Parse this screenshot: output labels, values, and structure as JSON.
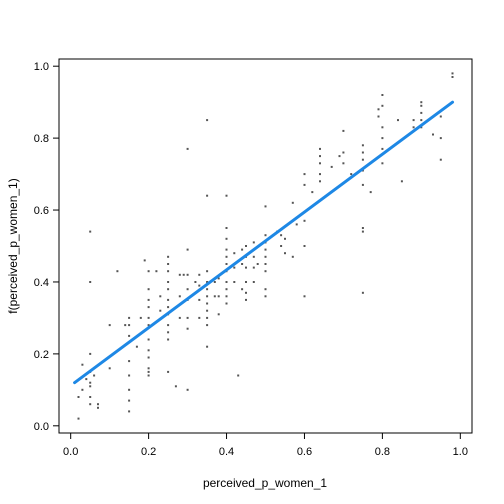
{
  "chart_data": {
    "type": "scatter",
    "xlabel": "perceived_p_women_1",
    "ylabel": "f(perceived_p_women_1)",
    "xlim": [
      -0.03,
      1.03
    ],
    "ylim": [
      -0.02,
      1.02
    ],
    "x_ticks": [
      0.0,
      0.2,
      0.4,
      0.6,
      0.8,
      1.0
    ],
    "x_tick_labels": [
      "0.0",
      "0.2",
      "0.4",
      "0.6",
      "0.8",
      "1.0"
    ],
    "y_ticks": [
      0.0,
      0.2,
      0.4,
      0.6,
      0.8,
      1.0
    ],
    "y_tick_labels": [
      "0.0",
      "0.2",
      "0.4",
      "0.6",
      "0.8",
      "1.0"
    ],
    "grid": false,
    "colors": {
      "points": "#555555",
      "fit_line": "#1e88e5"
    },
    "series": [
      {
        "kind": "points",
        "points": [
          [
            0.02,
            0.08
          ],
          [
            0.02,
            0.02
          ],
          [
            0.03,
            0.1
          ],
          [
            0.03,
            0.17
          ],
          [
            0.04,
            0.13
          ],
          [
            0.05,
            0.54
          ],
          [
            0.05,
            0.4
          ],
          [
            0.05,
            0.2
          ],
          [
            0.05,
            0.15
          ],
          [
            0.05,
            0.12
          ],
          [
            0.05,
            0.11
          ],
          [
            0.05,
            0.08
          ],
          [
            0.05,
            0.06
          ],
          [
            0.06,
            0.14
          ],
          [
            0.07,
            0.05
          ],
          [
            0.07,
            0.06
          ],
          [
            0.1,
            0.28
          ],
          [
            0.1,
            0.16
          ],
          [
            0.12,
            0.43
          ],
          [
            0.14,
            0.28
          ],
          [
            0.15,
            0.3
          ],
          [
            0.15,
            0.28
          ],
          [
            0.15,
            0.25
          ],
          [
            0.15,
            0.18
          ],
          [
            0.15,
            0.14
          ],
          [
            0.15,
            0.1
          ],
          [
            0.15,
            0.07
          ],
          [
            0.15,
            0.04
          ],
          [
            0.17,
            0.22
          ],
          [
            0.18,
            0.3
          ],
          [
            0.19,
            0.46
          ],
          [
            0.2,
            0.43
          ],
          [
            0.2,
            0.38
          ],
          [
            0.2,
            0.35
          ],
          [
            0.2,
            0.33
          ],
          [
            0.2,
            0.3
          ],
          [
            0.2,
            0.28
          ],
          [
            0.2,
            0.24
          ],
          [
            0.2,
            0.21
          ],
          [
            0.2,
            0.19
          ],
          [
            0.2,
            0.16
          ],
          [
            0.2,
            0.15
          ],
          [
            0.2,
            0.14
          ],
          [
            0.22,
            0.43
          ],
          [
            0.23,
            0.36
          ],
          [
            0.23,
            0.32
          ],
          [
            0.25,
            0.47
          ],
          [
            0.25,
            0.45
          ],
          [
            0.25,
            0.43
          ],
          [
            0.25,
            0.4
          ],
          [
            0.25,
            0.38
          ],
          [
            0.25,
            0.35
          ],
          [
            0.25,
            0.33
          ],
          [
            0.25,
            0.31
          ],
          [
            0.25,
            0.28
          ],
          [
            0.25,
            0.26
          ],
          [
            0.25,
            0.24
          ],
          [
            0.25,
            0.15
          ],
          [
            0.27,
            0.11
          ],
          [
            0.28,
            0.42
          ],
          [
            0.28,
            0.36
          ],
          [
            0.28,
            0.3
          ],
          [
            0.29,
            0.42
          ],
          [
            0.3,
            0.77
          ],
          [
            0.3,
            0.49
          ],
          [
            0.3,
            0.42
          ],
          [
            0.3,
            0.38
          ],
          [
            0.3,
            0.35
          ],
          [
            0.3,
            0.3
          ],
          [
            0.3,
            0.27
          ],
          [
            0.3,
            0.1
          ],
          [
            0.32,
            0.4
          ],
          [
            0.33,
            0.42
          ],
          [
            0.33,
            0.39
          ],
          [
            0.33,
            0.35
          ],
          [
            0.33,
            0.3
          ],
          [
            0.35,
            0.85
          ],
          [
            0.35,
            0.64
          ],
          [
            0.35,
            0.43
          ],
          [
            0.35,
            0.4
          ],
          [
            0.35,
            0.38
          ],
          [
            0.35,
            0.36
          ],
          [
            0.35,
            0.34
          ],
          [
            0.35,
            0.32
          ],
          [
            0.35,
            0.3
          ],
          [
            0.35,
            0.28
          ],
          [
            0.35,
            0.22
          ],
          [
            0.37,
            0.4
          ],
          [
            0.37,
            0.36
          ],
          [
            0.38,
            0.41
          ],
          [
            0.38,
            0.36
          ],
          [
            0.38,
            0.31
          ],
          [
            0.4,
            0.64
          ],
          [
            0.4,
            0.55
          ],
          [
            0.4,
            0.52
          ],
          [
            0.4,
            0.49
          ],
          [
            0.4,
            0.47
          ],
          [
            0.4,
            0.45
          ],
          [
            0.4,
            0.43
          ],
          [
            0.4,
            0.4
          ],
          [
            0.4,
            0.38
          ],
          [
            0.4,
            0.36
          ],
          [
            0.4,
            0.34
          ],
          [
            0.42,
            0.48
          ],
          [
            0.42,
            0.44
          ],
          [
            0.42,
            0.4
          ],
          [
            0.43,
            0.14
          ],
          [
            0.44,
            0.49
          ],
          [
            0.44,
            0.45
          ],
          [
            0.44,
            0.38
          ],
          [
            0.45,
            0.5
          ],
          [
            0.45,
            0.47
          ],
          [
            0.45,
            0.44
          ],
          [
            0.45,
            0.4
          ],
          [
            0.45,
            0.37
          ],
          [
            0.45,
            0.35
          ],
          [
            0.47,
            0.51
          ],
          [
            0.47,
            0.47
          ],
          [
            0.47,
            0.44
          ],
          [
            0.47,
            0.4
          ],
          [
            0.48,
            0.45
          ],
          [
            0.5,
            0.61
          ],
          [
            0.5,
            0.53
          ],
          [
            0.5,
            0.51
          ],
          [
            0.5,
            0.49
          ],
          [
            0.5,
            0.47
          ],
          [
            0.5,
            0.45
          ],
          [
            0.5,
            0.43
          ],
          [
            0.5,
            0.38
          ],
          [
            0.5,
            0.36
          ],
          [
            0.53,
            0.54
          ],
          [
            0.54,
            0.53
          ],
          [
            0.54,
            0.5
          ],
          [
            0.55,
            0.48
          ],
          [
            0.55,
            0.52
          ],
          [
            0.57,
            0.62
          ],
          [
            0.57,
            0.47
          ],
          [
            0.58,
            0.56
          ],
          [
            0.6,
            0.7
          ],
          [
            0.6,
            0.67
          ],
          [
            0.6,
            0.57
          ],
          [
            0.6,
            0.5
          ],
          [
            0.6,
            0.36
          ],
          [
            0.62,
            0.65
          ],
          [
            0.64,
            0.77
          ],
          [
            0.64,
            0.75
          ],
          [
            0.64,
            0.73
          ],
          [
            0.64,
            0.7
          ],
          [
            0.64,
            0.68
          ],
          [
            0.67,
            0.72
          ],
          [
            0.69,
            0.75
          ],
          [
            0.7,
            0.82
          ],
          [
            0.7,
            0.76
          ],
          [
            0.7,
            0.73
          ],
          [
            0.72,
            0.7
          ],
          [
            0.75,
            0.78
          ],
          [
            0.75,
            0.76
          ],
          [
            0.75,
            0.74
          ],
          [
            0.75,
            0.71
          ],
          [
            0.75,
            0.67
          ],
          [
            0.75,
            0.55
          ],
          [
            0.75,
            0.54
          ],
          [
            0.75,
            0.37
          ],
          [
            0.77,
            0.65
          ],
          [
            0.79,
            0.88
          ],
          [
            0.79,
            0.86
          ],
          [
            0.8,
            0.92
          ],
          [
            0.8,
            0.89
          ],
          [
            0.8,
            0.83
          ],
          [
            0.8,
            0.8
          ],
          [
            0.8,
            0.77
          ],
          [
            0.8,
            0.73
          ],
          [
            0.84,
            0.85
          ],
          [
            0.85,
            0.68
          ],
          [
            0.88,
            0.85
          ],
          [
            0.88,
            0.83
          ],
          [
            0.9,
            0.9
          ],
          [
            0.9,
            0.89
          ],
          [
            0.9,
            0.87
          ],
          [
            0.9,
            0.85
          ],
          [
            0.9,
            0.83
          ],
          [
            0.93,
            0.81
          ],
          [
            0.95,
            0.86
          ],
          [
            0.95,
            0.8
          ],
          [
            0.95,
            0.74
          ],
          [
            0.98,
            0.98
          ],
          [
            0.98,
            0.97
          ]
        ]
      },
      {
        "kind": "fit_line",
        "x": [
          0.01,
          0.98
        ],
        "y": [
          0.12,
          0.9
        ]
      }
    ]
  }
}
